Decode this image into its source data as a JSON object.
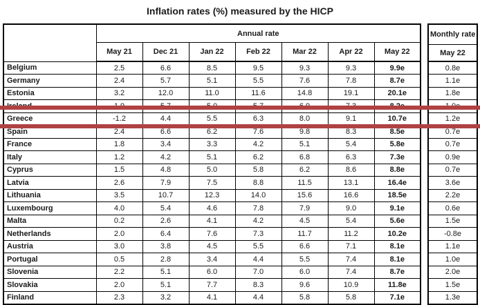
{
  "title": "Inflation rates (%) measured by the HICP",
  "table": {
    "annual_header": "Annual rate",
    "monthly_header": "Monthly rate",
    "month_columns": [
      "May 21",
      "Dec 21",
      "Jan 22",
      "Feb 22",
      "Mar 22",
      "Apr 22",
      "May 22"
    ],
    "monthly_column": "May 22",
    "rows": [
      {
        "country": "Belgium",
        "values": [
          "2.5",
          "6.6",
          "8.5",
          "9.5",
          "9.3",
          "9.3",
          "9.9e"
        ],
        "monthly": "0.8e"
      },
      {
        "country": "Germany",
        "values": [
          "2.4",
          "5.7",
          "5.1",
          "5.5",
          "7.6",
          "7.8",
          "8.7e"
        ],
        "monthly": "1.1e"
      },
      {
        "country": "Estonia",
        "values": [
          "3.2",
          "12.0",
          "11.0",
          "11.6",
          "14.8",
          "19.1",
          "20.1e"
        ],
        "monthly": "1.8e"
      },
      {
        "country": "Ireland",
        "values": [
          "1.9",
          "5.7",
          "5.0",
          "5.7",
          "6.9",
          "7.3",
          "8.2e"
        ],
        "monthly": "1.0e"
      },
      {
        "country": "Greece",
        "values": [
          "-1.2",
          "4.4",
          "5.5",
          "6.3",
          "8.0",
          "9.1",
          "10.7e"
        ],
        "monthly": "1.2e"
      },
      {
        "country": "Spain",
        "values": [
          "2.4",
          "6.6",
          "6.2",
          "7.6",
          "9.8",
          "8.3",
          "8.5e"
        ],
        "monthly": "0.7e"
      },
      {
        "country": "France",
        "values": [
          "1.8",
          "3.4",
          "3.3",
          "4.2",
          "5.1",
          "5.4",
          "5.8e"
        ],
        "monthly": "0.7e"
      },
      {
        "country": "Italy",
        "values": [
          "1.2",
          "4.2",
          "5.1",
          "6.2",
          "6.8",
          "6.3",
          "7.3e"
        ],
        "monthly": "0.9e"
      },
      {
        "country": "Cyprus",
        "values": [
          "1.5",
          "4.8",
          "5.0",
          "5.8",
          "6.2",
          "8.6",
          "8.8e"
        ],
        "monthly": "0.7e"
      },
      {
        "country": "Latvia",
        "values": [
          "2.6",
          "7.9",
          "7.5",
          "8.8",
          "11.5",
          "13.1",
          "16.4e"
        ],
        "monthly": "3.6e"
      },
      {
        "country": "Lithuania",
        "values": [
          "3.5",
          "10.7",
          "12.3",
          "14.0",
          "15.6",
          "16.6",
          "18.5e"
        ],
        "monthly": "2.2e"
      },
      {
        "country": "Luxembourg",
        "values": [
          "4.0",
          "5.4",
          "4.6",
          "7.8",
          "7.9",
          "9.0",
          "9.1e"
        ],
        "monthly": "0.6e"
      },
      {
        "country": "Malta",
        "values": [
          "0.2",
          "2.6",
          "4.1",
          "4.2",
          "4.5",
          "5.4",
          "5.6e"
        ],
        "monthly": "1.5e"
      },
      {
        "country": "Netherlands",
        "values": [
          "2.0",
          "6.4",
          "7.6",
          "7.3",
          "11.7",
          "11.2",
          "10.2e"
        ],
        "monthly": "-0.8e"
      },
      {
        "country": "Austria",
        "values": [
          "3.0",
          "3.8",
          "4.5",
          "5.5",
          "6.6",
          "7.1",
          "8.1e"
        ],
        "monthly": "1.1e"
      },
      {
        "country": "Portugal",
        "values": [
          "0.5",
          "2.8",
          "3.4",
          "4.4",
          "5.5",
          "7.4",
          "8.1e"
        ],
        "monthly": "1.0e"
      },
      {
        "country": "Slovenia",
        "values": [
          "2.2",
          "5.1",
          "6.0",
          "7.0",
          "6.0",
          "7.4",
          "8.7e"
        ],
        "monthly": "2.0e"
      },
      {
        "country": "Slovakia",
        "values": [
          "2.0",
          "5.1",
          "7.7",
          "8.3",
          "9.6",
          "10.9",
          "11.8e"
        ],
        "monthly": "1.5e"
      },
      {
        "country": "Finland",
        "values": [
          "2.3",
          "3.2",
          "4.1",
          "4.4",
          "5.8",
          "5.8",
          "7.1e"
        ],
        "monthly": "1.3e"
      }
    ]
  },
  "highlight": {
    "row": "Greece",
    "color": "#b04242"
  }
}
